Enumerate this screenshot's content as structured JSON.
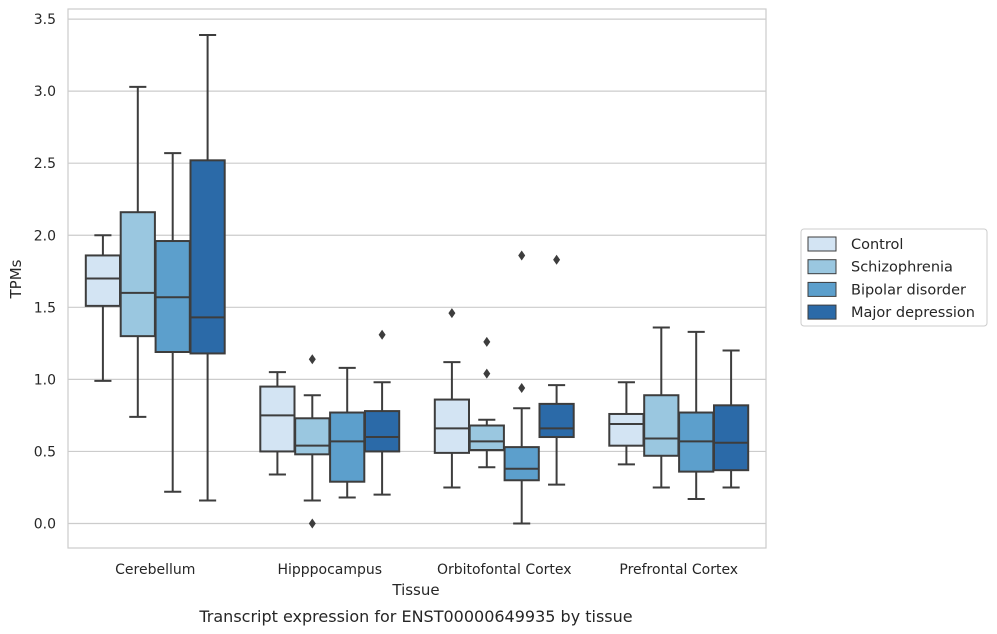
{
  "chart_data": {
    "type": "box",
    "caption": "Transcript expression for ENST00000649935 by tissue",
    "xlabel": "Tissue",
    "ylabel": "TPMs",
    "ylim": [
      -0.17,
      3.57
    ],
    "yticks": [
      "0.0",
      "0.5",
      "1.0",
      "1.5",
      "2.0",
      "2.5",
      "3.0",
      "3.5"
    ],
    "ytick_values": [
      0.0,
      0.5,
      1.0,
      1.5,
      2.0,
      2.5,
      3.0,
      3.5
    ],
    "grid": "horizontal",
    "legend_position": "right",
    "categories": [
      "Cerebellum",
      "Hipppocampus",
      "Orbitofontal Cortex",
      "Prefrontal Cortex"
    ],
    "series": [
      {
        "name": "Control",
        "color": "#d3e4f3",
        "boxes": [
          {
            "whislo": 0.99,
            "q1": 1.51,
            "med": 1.7,
            "q3": 1.86,
            "whishi": 2.0,
            "fliers": []
          },
          {
            "whislo": 0.34,
            "q1": 0.5,
            "med": 0.75,
            "q3": 0.95,
            "whishi": 1.05,
            "fliers": []
          },
          {
            "whislo": 0.25,
            "q1": 0.49,
            "med": 0.66,
            "q3": 0.86,
            "whishi": 1.12,
            "fliers": [
              1.46
            ]
          },
          {
            "whislo": 0.41,
            "q1": 0.54,
            "med": 0.69,
            "q3": 0.76,
            "whishi": 0.98,
            "fliers": []
          }
        ]
      },
      {
        "name": "Schizophrenia",
        "color": "#9ac7e0",
        "boxes": [
          {
            "whislo": 0.74,
            "q1": 1.3,
            "med": 1.6,
            "q3": 2.16,
            "whishi": 3.03,
            "fliers": []
          },
          {
            "whislo": 0.16,
            "q1": 0.48,
            "med": 0.54,
            "q3": 0.73,
            "whishi": 0.89,
            "fliers": [
              1.14,
              0.0
            ]
          },
          {
            "whislo": 0.39,
            "q1": 0.51,
            "med": 0.57,
            "q3": 0.68,
            "whishi": 0.72,
            "fliers": [
              1.26,
              1.04
            ]
          },
          {
            "whislo": 0.25,
            "q1": 0.47,
            "med": 0.59,
            "q3": 0.89,
            "whishi": 1.36,
            "fliers": []
          }
        ]
      },
      {
        "name": "Bipolar disorder",
        "color": "#5c9fcc",
        "boxes": [
          {
            "whislo": 0.22,
            "q1": 1.19,
            "med": 1.57,
            "q3": 1.96,
            "whishi": 2.57,
            "fliers": []
          },
          {
            "whislo": 0.18,
            "q1": 0.29,
            "med": 0.57,
            "q3": 0.77,
            "whishi": 1.08,
            "fliers": []
          },
          {
            "whislo": 0.0,
            "q1": 0.3,
            "med": 0.38,
            "q3": 0.53,
            "whishi": 0.8,
            "fliers": [
              1.86,
              0.94
            ]
          },
          {
            "whislo": 0.17,
            "q1": 0.36,
            "med": 0.57,
            "q3": 0.77,
            "whishi": 1.33,
            "fliers": []
          }
        ]
      },
      {
        "name": "Major depression",
        "color": "#2b6aa8",
        "boxes": [
          {
            "whislo": 0.16,
            "q1": 1.18,
            "med": 1.43,
            "q3": 2.52,
            "whishi": 3.39,
            "fliers": []
          },
          {
            "whislo": 0.2,
            "q1": 0.5,
            "med": 0.6,
            "q3": 0.78,
            "whishi": 0.98,
            "fliers": [
              1.31
            ]
          },
          {
            "whislo": 0.27,
            "q1": 0.6,
            "med": 0.66,
            "q3": 0.83,
            "whishi": 0.96,
            "fliers": [
              1.83
            ]
          },
          {
            "whislo": 0.25,
            "q1": 0.37,
            "med": 0.56,
            "q3": 0.82,
            "whishi": 1.2,
            "fliers": []
          }
        ]
      }
    ]
  }
}
